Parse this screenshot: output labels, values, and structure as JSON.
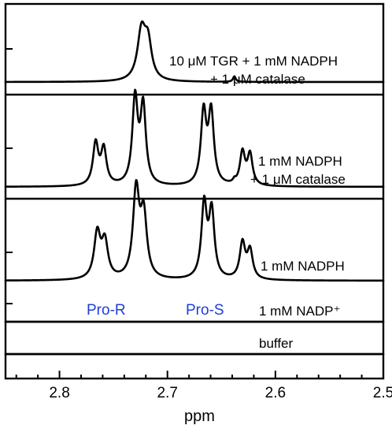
{
  "chart_data": {
    "type": "line",
    "xlabel": "ppm",
    "xlim": [
      2.85,
      2.5
    ],
    "x_reversed": true,
    "x_ticks": [
      2.8,
      2.7,
      2.6,
      2.5
    ],
    "x_tick_labels": [
      "2.8",
      "2.7",
      "2.6",
      "2.5"
    ],
    "annotations": [
      {
        "text": "Pro-R",
        "x": 2.76,
        "color": "#1f3fd6"
      },
      {
        "text": "Pro-S",
        "x": 2.657,
        "color": "#1f3fd6"
      }
    ],
    "spectra": [
      {
        "label_lines": [
          "10 μM TGR + 1 mM NADPH",
          "+ 1 μM catalase"
        ],
        "peaks": [
          {
            "ppm": 2.724,
            "height": 0.62,
            "width": 0.0045
          },
          {
            "ppm": 2.718,
            "height": 0.45,
            "width": 0.004
          },
          {
            "ppm": 2.638,
            "height": 0.07,
            "width": 0.0015
          }
        ]
      },
      {
        "label_lines": [
          "1 mM NADPH",
          "+ 1 μM catalase"
        ],
        "peaks": [
          {
            "ppm": 2.7665,
            "height": 0.42,
            "width": 0.003
          },
          {
            "ppm": 2.759,
            "height": 0.36,
            "width": 0.003
          },
          {
            "ppm": 2.73,
            "height": 0.86,
            "width": 0.003
          },
          {
            "ppm": 2.7225,
            "height": 0.78,
            "width": 0.003
          },
          {
            "ppm": 2.6665,
            "height": 0.72,
            "width": 0.003
          },
          {
            "ppm": 2.6595,
            "height": 0.72,
            "width": 0.003
          },
          {
            "ppm": 2.6305,
            "height": 0.33,
            "width": 0.0028
          },
          {
            "ppm": 2.6235,
            "height": 0.31,
            "width": 0.0028
          },
          {
            "ppm": 2.638,
            "height": 0.03,
            "width": 0.0015
          }
        ]
      },
      {
        "label_lines": [
          "1 mM NADPH"
        ],
        "peaks": [
          {
            "ppm": 2.765,
            "height": 0.48,
            "width": 0.0035
          },
          {
            "ppm": 2.758,
            "height": 0.38,
            "width": 0.0035
          },
          {
            "ppm": 2.729,
            "height": 0.92,
            "width": 0.0035
          },
          {
            "ppm": 2.722,
            "height": 0.65,
            "width": 0.0035
          },
          {
            "ppm": 2.666,
            "height": 0.78,
            "width": 0.003
          },
          {
            "ppm": 2.659,
            "height": 0.7,
            "width": 0.003
          },
          {
            "ppm": 2.6305,
            "height": 0.38,
            "width": 0.003
          },
          {
            "ppm": 2.6235,
            "height": 0.3,
            "width": 0.003
          }
        ]
      },
      {
        "label_lines": [
          "1 mM NADP⁺"
        ],
        "peaks": []
      },
      {
        "label_lines": [
          "buffer"
        ],
        "peaks": []
      }
    ]
  }
}
